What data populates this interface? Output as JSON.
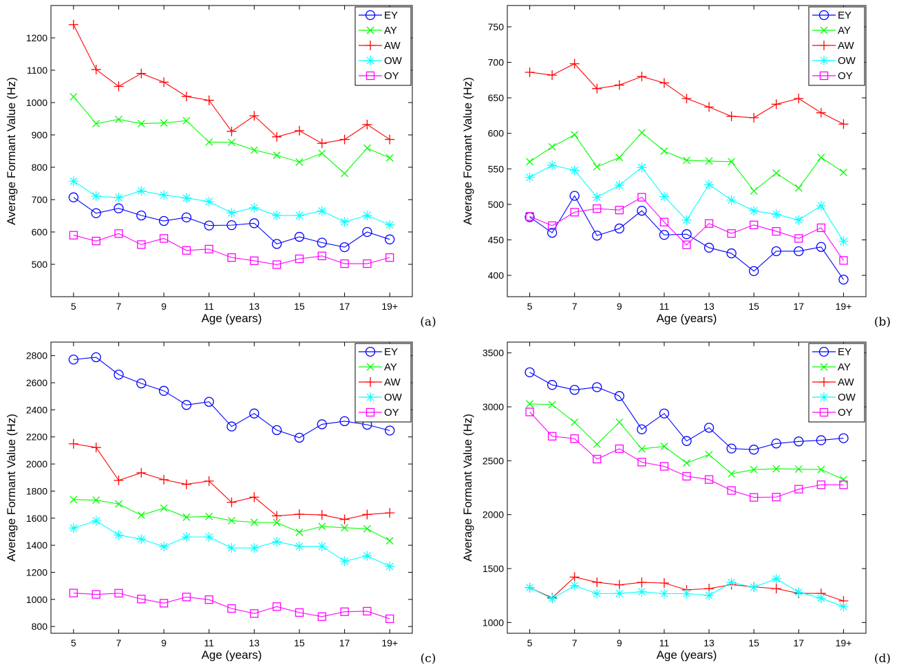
{
  "figure": {
    "xlabel": "Age (years)",
    "ylabel": "Average Formant Value (Hz)"
  },
  "series_styles": [
    {
      "name": "EY",
      "color": "#0000ff",
      "marker": "circle"
    },
    {
      "name": "AY",
      "color": "#00ff00",
      "marker": "x"
    },
    {
      "name": "AW",
      "color": "#ff0000",
      "marker": "plus"
    },
    {
      "name": "OW",
      "color": "#00ffff",
      "marker": "asterisk"
    },
    {
      "name": "OY",
      "color": "#ff00ff",
      "marker": "square"
    }
  ],
  "chart_data": [
    {
      "type": "line",
      "panel_label": "(a)",
      "xlabel": "Age (years)",
      "ylabel": "Average Formant Value (Hz)",
      "x": [
        5,
        6,
        7,
        8,
        9,
        10,
        11,
        12,
        13,
        14,
        15,
        16,
        17,
        18,
        19
      ],
      "xticks": [
        5,
        7,
        9,
        11,
        13,
        15,
        17,
        19
      ],
      "xticklabels": [
        "5",
        "7",
        "9",
        "11",
        "13",
        "15",
        "17",
        "19+"
      ],
      "xlim": [
        4,
        20
      ],
      "ylim": [
        400,
        1300
      ],
      "yticks": [
        500,
        600,
        700,
        800,
        900,
        1000,
        1100,
        1200
      ],
      "legend": "top-right",
      "grid": false,
      "series": [
        {
          "name": "EY",
          "values": [
            707,
            658,
            673,
            651,
            634,
            645,
            620,
            621,
            627,
            563,
            585,
            567,
            553,
            600,
            577
          ]
        },
        {
          "name": "AY",
          "values": [
            1018,
            935,
            948,
            935,
            937,
            944,
            878,
            877,
            853,
            837,
            816,
            843,
            781,
            859,
            829
          ]
        },
        {
          "name": "AW",
          "values": [
            1241,
            1102,
            1050,
            1090,
            1063,
            1019,
            1007,
            911,
            959,
            894,
            913,
            874,
            886,
            932,
            886
          ]
        },
        {
          "name": "OW",
          "values": [
            757,
            711,
            706,
            727,
            714,
            705,
            694,
            659,
            675,
            651,
            651,
            665,
            631,
            651,
            622
          ]
        },
        {
          "name": "OY",
          "values": [
            590,
            572,
            595,
            561,
            580,
            543,
            547,
            521,
            511,
            499,
            517,
            526,
            502,
            502,
            521
          ]
        }
      ]
    },
    {
      "type": "line",
      "panel_label": "(b)",
      "xlabel": "Age (years)",
      "ylabel": "Average Formant Value (Hz)",
      "x": [
        5,
        6,
        7,
        8,
        9,
        10,
        11,
        12,
        13,
        14,
        15,
        16,
        17,
        18,
        19
      ],
      "xticks": [
        5,
        7,
        9,
        11,
        13,
        15,
        17,
        19
      ],
      "xticklabels": [
        "5",
        "7",
        "9",
        "11",
        "13",
        "15",
        "17",
        "19+"
      ],
      "xlim": [
        4,
        20
      ],
      "ylim": [
        370,
        780
      ],
      "yticks": [
        400,
        450,
        500,
        550,
        600,
        650,
        700,
        750
      ],
      "legend": "top-right",
      "grid": false,
      "series": [
        {
          "name": "EY",
          "values": [
            482,
            460,
            512,
            456,
            466,
            491,
            457,
            458,
            439,
            431,
            406,
            434,
            434,
            440,
            394
          ]
        },
        {
          "name": "AY",
          "values": [
            560,
            581,
            598,
            553,
            566,
            601,
            575,
            562,
            561,
            560,
            519,
            544,
            523,
            566,
            545
          ]
        },
        {
          "name": "AW",
          "values": [
            686,
            682,
            698,
            663,
            668,
            680,
            671,
            649,
            637,
            624,
            622,
            641,
            649,
            629,
            613
          ]
        },
        {
          "name": "OW",
          "values": [
            538,
            555,
            548,
            510,
            527,
            552,
            511,
            478,
            528,
            506,
            491,
            486,
            478,
            498,
            448
          ]
        },
        {
          "name": "OY",
          "values": [
            483,
            470,
            489,
            494,
            492,
            510,
            475,
            443,
            473,
            459,
            471,
            462,
            452,
            467,
            421
          ]
        }
      ]
    },
    {
      "type": "line",
      "panel_label": "(c)",
      "xlabel": "Age (years)",
      "ylabel": "Average Formant Value (Hz)",
      "x": [
        5,
        6,
        7,
        8,
        9,
        10,
        11,
        12,
        13,
        14,
        15,
        16,
        17,
        18,
        19
      ],
      "xticks": [
        5,
        7,
        9,
        11,
        13,
        15,
        17,
        19
      ],
      "xticklabels": [
        "5",
        "7",
        "9",
        "11",
        "13",
        "15",
        "17",
        "19+"
      ],
      "xlim": [
        4,
        20
      ],
      "ylim": [
        750,
        2900
      ],
      "yticks": [
        800,
        1000,
        1200,
        1400,
        1600,
        1800,
        2000,
        2200,
        2400,
        2600,
        2800
      ],
      "legend": "top-right",
      "grid": false,
      "series": [
        {
          "name": "EY",
          "values": [
            2771,
            2788,
            2660,
            2595,
            2540,
            2436,
            2459,
            2277,
            2373,
            2250,
            2194,
            2293,
            2316,
            2290,
            2247
          ]
        },
        {
          "name": "AY",
          "values": [
            1737,
            1733,
            1705,
            1622,
            1674,
            1607,
            1613,
            1582,
            1569,
            1567,
            1496,
            1539,
            1529,
            1522,
            1433
          ]
        },
        {
          "name": "AW",
          "values": [
            2149,
            2122,
            1879,
            1935,
            1884,
            1850,
            1874,
            1717,
            1755,
            1617,
            1629,
            1624,
            1591,
            1627,
            1639
          ]
        },
        {
          "name": "OW",
          "values": [
            1527,
            1580,
            1475,
            1445,
            1390,
            1461,
            1461,
            1380,
            1380,
            1426,
            1392,
            1392,
            1282,
            1322,
            1244
          ]
        },
        {
          "name": "OY",
          "values": [
            1047,
            1037,
            1046,
            1003,
            972,
            1018,
            998,
            933,
            896,
            947,
            903,
            873,
            909,
            913,
            857
          ]
        }
      ]
    },
    {
      "type": "line",
      "panel_label": "(d)",
      "xlabel": "Age (years)",
      "ylabel": "Average Formant Value (Hz)",
      "x": [
        5,
        6,
        7,
        8,
        9,
        10,
        11,
        12,
        13,
        14,
        15,
        16,
        17,
        18,
        19
      ],
      "xticks": [
        5,
        7,
        9,
        11,
        13,
        15,
        17,
        19
      ],
      "xticklabels": [
        "5",
        "7",
        "9",
        "11",
        "13",
        "15",
        "17",
        "19+"
      ],
      "xlim": [
        4,
        20
      ],
      "ylim": [
        900,
        3600
      ],
      "yticks": [
        1000,
        1500,
        2000,
        2500,
        3000,
        3500
      ],
      "legend": "top-right",
      "grid": false,
      "series": [
        {
          "name": "EY",
          "values": [
            3320,
            3203,
            3157,
            3182,
            3100,
            2791,
            2938,
            2683,
            2806,
            2613,
            2603,
            2660,
            2679,
            2690,
            2709
          ]
        },
        {
          "name": "AY",
          "values": [
            3027,
            3020,
            2857,
            2654,
            2857,
            2610,
            2633,
            2479,
            2557,
            2379,
            2418,
            2425,
            2422,
            2419,
            2326
          ]
        },
        {
          "name": "AW",
          "values": [
            1323,
            1229,
            1421,
            1373,
            1349,
            1372,
            1366,
            1303,
            1314,
            1351,
            1330,
            1314,
            1270,
            1270,
            1200
          ]
        },
        {
          "name": "OW",
          "values": [
            1323,
            1221,
            1342,
            1267,
            1270,
            1285,
            1267,
            1267,
            1251,
            1370,
            1327,
            1405,
            1281,
            1225,
            1147
          ]
        },
        {
          "name": "OY",
          "values": [
            2952,
            2727,
            2705,
            2515,
            2611,
            2487,
            2448,
            2356,
            2326,
            2224,
            2160,
            2163,
            2236,
            2277,
            2277
          ]
        }
      ]
    }
  ]
}
